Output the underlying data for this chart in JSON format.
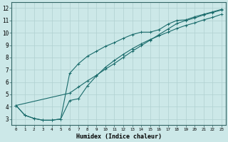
{
  "xlabel": "Humidex (Indice chaleur)",
  "background_color": "#cce8e8",
  "grid_color": "#b0d0d0",
  "line_color": "#1a6b6b",
  "xlim": [
    -0.5,
    23.5
  ],
  "ylim": [
    2.5,
    12.5
  ],
  "xticks": [
    0,
    1,
    2,
    3,
    4,
    5,
    6,
    7,
    8,
    9,
    10,
    11,
    12,
    13,
    14,
    15,
    16,
    17,
    18,
    19,
    20,
    21,
    22,
    23
  ],
  "yticks": [
    3,
    4,
    5,
    6,
    7,
    8,
    9,
    10,
    11,
    12
  ],
  "line1_x": [
    0,
    1,
    2,
    3,
    4,
    5,
    6,
    7,
    8,
    9,
    10,
    11,
    12,
    13,
    14,
    15,
    16,
    17,
    18,
    19,
    20,
    21,
    22,
    23
  ],
  "line1_y": [
    4.1,
    3.3,
    3.05,
    2.9,
    2.9,
    3.0,
    6.7,
    7.5,
    8.1,
    8.5,
    8.9,
    9.2,
    9.55,
    9.85,
    10.05,
    10.05,
    10.25,
    10.7,
    11.0,
    11.05,
    11.3,
    11.5,
    11.7,
    11.9
  ],
  "line2_x": [
    0,
    1,
    2,
    3,
    4,
    5,
    6,
    7,
    8,
    9,
    10,
    11,
    12,
    13,
    14,
    15,
    16,
    17,
    18,
    19,
    20,
    21,
    22,
    23
  ],
  "line2_y": [
    4.1,
    3.3,
    3.05,
    2.9,
    2.9,
    3.0,
    4.5,
    4.65,
    5.7,
    6.5,
    7.2,
    7.75,
    8.25,
    8.7,
    9.1,
    9.45,
    9.75,
    10.05,
    10.35,
    10.6,
    10.8,
    11.05,
    11.25,
    11.5
  ],
  "line3_x": [
    0,
    6,
    7,
    8,
    9,
    10,
    11,
    12,
    13,
    14,
    15,
    16,
    17,
    18,
    19,
    20,
    21,
    22,
    23
  ],
  "line3_y": [
    4.1,
    5.1,
    5.6,
    6.1,
    6.55,
    7.05,
    7.5,
    8.0,
    8.5,
    8.95,
    9.4,
    9.85,
    10.3,
    10.75,
    11.0,
    11.2,
    11.45,
    11.65,
    11.85
  ]
}
